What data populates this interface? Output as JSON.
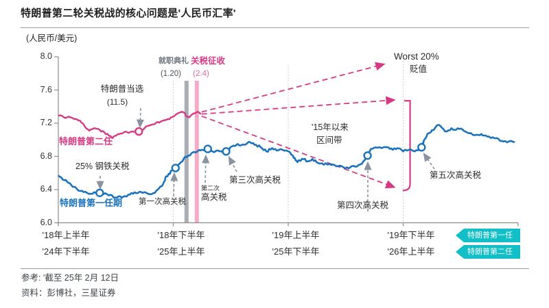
{
  "page": {
    "title": "特朗普第二轮关税战的核心问题是'人民币汇率'",
    "unit_label": "(人民币/美元)"
  },
  "footer": {
    "reference": "参考: '截至 25年 2月 12日",
    "source": "资料：彭博社，三星证券"
  },
  "badges": [
    {
      "label": "特朗普第一任"
    },
    {
      "label": "特朗普第二任"
    }
  ],
  "colors": {
    "pink": "#d63884",
    "blue": "#1a72bd",
    "teal": "#12bfc6",
    "gray_band": "#a9aeb6",
    "pink_band": "#f3abc6",
    "grid": "#bdbdbd",
    "axis": "#8c8c8c",
    "gray_text": "#6e757d",
    "dark_text": "#2b2b2b"
  },
  "annotations": {
    "series_pink": "特朗普第二任",
    "series_blue": "特朗普第一任期",
    "trump_elected": "特朗普当选",
    "trump_elected_date": "(11.5)",
    "inauguration": "就职典礼",
    "inauguration_date": "(1.20)",
    "tariff_start": "关税征收",
    "tariff_start_date": "(2.4)",
    "steel": "25% 钢铁关税",
    "tariff1": "第一次高关税",
    "tariff2_small": "第二次",
    "tariff2": "高关税",
    "tariff3": "第三次高关税",
    "range1": "'15年以来",
    "range2": "区间带",
    "tariff4": "第四次高关税",
    "tariff5": "第五次高关税",
    "worst1": "Worst 20%",
    "worst2": "贬值"
  },
  "chart_data": {
    "type": "line",
    "title": "特朗普第二轮关税战的核心问题是'人民币汇率'",
    "ylabel": "(人民币/美元)",
    "ylim": [
      6.0,
      8.0
    ],
    "yticks": [
      "8.0",
      "7.6",
      "7.2",
      "6.8",
      "6.4",
      "6.0"
    ],
    "x_axis_rows": [
      [
        "'18年上半年",
        "'18年下半年",
        "'19年上半年",
        "'19年下半年"
      ],
      [
        "'24年下半年",
        "'25年上半年",
        "'25年下半年",
        "'26年上半年"
      ]
    ],
    "grid": "vertical-dotted-halfyear",
    "legend_position": "right-of-x-axis",
    "series": [
      {
        "name": "特朗普第一任期",
        "color_key": "blue",
        "points": [
          [
            0,
            6.57
          ],
          [
            0.09,
            6.48
          ],
          [
            0.16,
            6.41
          ],
          [
            0.22,
            6.37
          ],
          [
            0.28,
            6.35
          ],
          [
            0.36,
            6.36
          ],
          [
            0.44,
            6.33
          ],
          [
            0.51,
            6.3
          ],
          [
            0.58,
            6.32
          ],
          [
            0.65,
            6.35
          ],
          [
            0.72,
            6.37
          ],
          [
            0.78,
            6.35
          ],
          [
            0.84,
            6.36
          ],
          [
            0.9,
            6.44
          ],
          [
            0.94,
            6.56
          ],
          [
            0.99,
            6.63
          ],
          [
            1.02,
            6.66
          ],
          [
            1.06,
            6.72
          ],
          [
            1.09,
            6.77
          ],
          [
            1.13,
            6.81
          ],
          [
            1.16,
            6.84
          ],
          [
            1.21,
            6.86
          ],
          [
            1.25,
            6.88
          ],
          [
            1.3,
            6.89
          ],
          [
            1.34,
            6.86
          ],
          [
            1.39,
            6.87
          ],
          [
            1.43,
            6.85
          ],
          [
            1.46,
            6.86
          ],
          [
            1.51,
            6.92
          ],
          [
            1.56,
            6.95
          ],
          [
            1.62,
            6.94
          ],
          [
            1.67,
            6.97
          ],
          [
            1.72,
            6.94
          ],
          [
            1.76,
            6.91
          ],
          [
            1.81,
            6.86
          ],
          [
            1.86,
            6.9
          ],
          [
            1.9,
            6.87
          ],
          [
            1.95,
            6.88
          ],
          [
            2.0,
            6.86
          ],
          [
            2.04,
            6.81
          ],
          [
            2.08,
            6.73
          ],
          [
            2.12,
            6.77
          ],
          [
            2.17,
            6.74
          ],
          [
            2.21,
            6.77
          ],
          [
            2.26,
            6.72
          ],
          [
            2.31,
            6.7
          ],
          [
            2.36,
            6.71
          ],
          [
            2.42,
            6.68
          ],
          [
            2.48,
            6.67
          ],
          [
            2.54,
            6.67
          ],
          [
            2.6,
            6.68
          ],
          [
            2.64,
            6.71
          ],
          [
            2.69,
            6.81
          ],
          [
            2.72,
            6.89
          ],
          [
            2.76,
            6.91
          ],
          [
            2.81,
            6.9
          ],
          [
            2.86,
            6.91
          ],
          [
            2.91,
            6.88
          ],
          [
            2.95,
            6.9
          ],
          [
            3.0,
            6.86
          ],
          [
            3.05,
            6.88
          ],
          [
            3.1,
            6.86
          ],
          [
            3.16,
            6.91
          ],
          [
            3.18,
            6.99
          ],
          [
            3.21,
            7.07
          ],
          [
            3.24,
            7.09
          ],
          [
            3.28,
            7.15
          ],
          [
            3.31,
            7.18
          ],
          [
            3.35,
            7.13
          ],
          [
            3.38,
            7.1
          ],
          [
            3.42,
            7.14
          ],
          [
            3.46,
            7.12
          ],
          [
            3.49,
            7.13
          ],
          [
            3.54,
            7.1
          ],
          [
            3.59,
            7.08
          ],
          [
            3.64,
            7.06
          ],
          [
            3.68,
            7.07
          ],
          [
            3.73,
            7.04
          ],
          [
            3.78,
            7.03
          ],
          [
            3.83,
            7.01
          ],
          [
            3.87,
            6.98
          ],
          [
            3.92,
            6.98
          ],
          [
            3.97,
            6.97
          ]
        ]
      },
      {
        "name": "特朗普第二任",
        "color_key": "pink",
        "points": [
          [
            0,
            7.29
          ],
          [
            0.05,
            7.27
          ],
          [
            0.09,
            7.28
          ],
          [
            0.14,
            7.25
          ],
          [
            0.19,
            7.23
          ],
          [
            0.23,
            7.16
          ],
          [
            0.27,
            7.11
          ],
          [
            0.32,
            7.14
          ],
          [
            0.36,
            7.12
          ],
          [
            0.4,
            7.09
          ],
          [
            0.44,
            7.05
          ],
          [
            0.47,
            7.02
          ],
          [
            0.5,
            7.05
          ],
          [
            0.53,
            7.07
          ],
          [
            0.57,
            7.09
          ],
          [
            0.6,
            7.09
          ],
          [
            0.64,
            7.1
          ],
          [
            0.7,
            7.1
          ],
          [
            0.75,
            7.14
          ],
          [
            0.79,
            7.17
          ],
          [
            0.84,
            7.19
          ],
          [
            0.89,
            7.22
          ],
          [
            0.94,
            7.24
          ],
          [
            0.98,
            7.27
          ],
          [
            1.02,
            7.3
          ],
          [
            1.06,
            7.33
          ],
          [
            1.09,
            7.33
          ],
          [
            1.12,
            7.28
          ],
          [
            1.14,
            7.27
          ],
          [
            1.16,
            7.3
          ],
          [
            1.19,
            7.32
          ],
          [
            1.21,
            7.34
          ],
          [
            1.24,
            7.31
          ]
        ]
      }
    ],
    "events": [
      {
        "label": "特朗普当选 (11.5)",
        "series": "特朗普第二任",
        "t": 0.7,
        "value": 7.1
      },
      {
        "label": "25% 钢铁关税",
        "series": "特朗普第一任期",
        "t": 0.36,
        "value": 6.36
      },
      {
        "label": "第一次高关税",
        "series": "特朗普第一任期",
        "t": 1.02,
        "value": 6.66
      },
      {
        "label": "第二次高关税",
        "series": "特朗普第一任期",
        "t": 1.3,
        "value": 6.89
      },
      {
        "label": "第三次高关税",
        "series": "特朗普第一任期",
        "t": 1.46,
        "value": 6.86
      },
      {
        "label": "第四次高关税",
        "series": "特朗普第一任期",
        "t": 2.69,
        "value": 6.81
      },
      {
        "label": "第五次高关税",
        "series": "特朗普第一任期",
        "t": 3.16,
        "value": 6.91
      }
    ],
    "bands": [
      {
        "label": "就职典礼 (1.20)",
        "t": 1.115,
        "color_key": "gray_band"
      },
      {
        "label": "关税征收 (2.4)",
        "t": 1.205,
        "color_key": "pink_band"
      }
    ],
    "scenario_fan": {
      "label": "Worst 20% 贬值",
      "origin": {
        "t": 1.24,
        "value": 7.31
      },
      "targets": [
        {
          "t": 2.83,
          "value": 7.91
        },
        {
          "t": 2.92,
          "value": 7.48
        },
        {
          "t": 2.92,
          "value": 6.43
        }
      ],
      "bracket": {
        "t": 3.06,
        "value_top": 7.47,
        "value_bottom": 6.39
      },
      "range_note": "'15年以来 区间带"
    }
  }
}
